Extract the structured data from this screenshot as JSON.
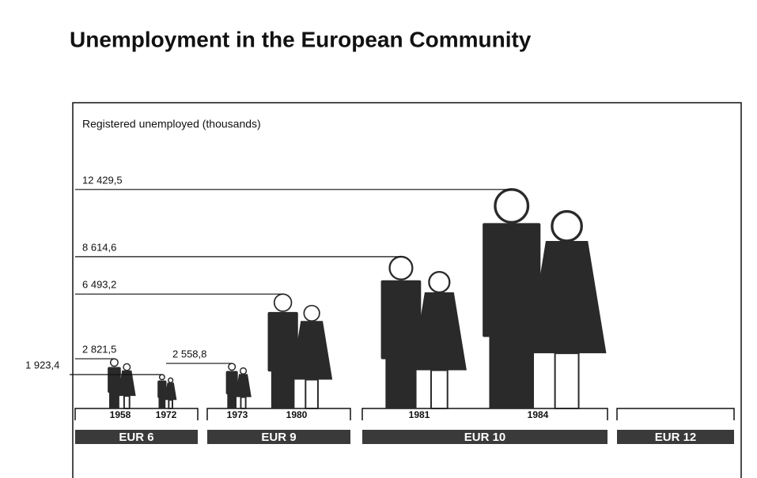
{
  "chart_data": {
    "type": "pictogram",
    "title": "Unemployment in the European Community",
    "subtitle": "Registered unemployed (thousands)",
    "groups": [
      {
        "name": "EUR 6",
        "categories": [
          "1958",
          "1972"
        ],
        "values": [
          2821.5,
          1923.4
        ],
        "value_labels": [
          "2 821,5",
          "1 923,4"
        ]
      },
      {
        "name": "EUR 9",
        "categories": [
          "1973",
          "1980"
        ],
        "values": [
          2558.8,
          6493.2
        ],
        "value_labels": [
          "2 558,8",
          "6 493,2"
        ]
      },
      {
        "name": "EUR 10",
        "categories": [
          "1981",
          "1984"
        ],
        "values": [
          8614.6,
          12429.5
        ],
        "value_labels": [
          "8 614,6",
          "12 429,5"
        ]
      },
      {
        "name": "EUR 12",
        "categories": [],
        "values": [],
        "value_labels": []
      }
    ],
    "color": "#2a2a2a"
  }
}
